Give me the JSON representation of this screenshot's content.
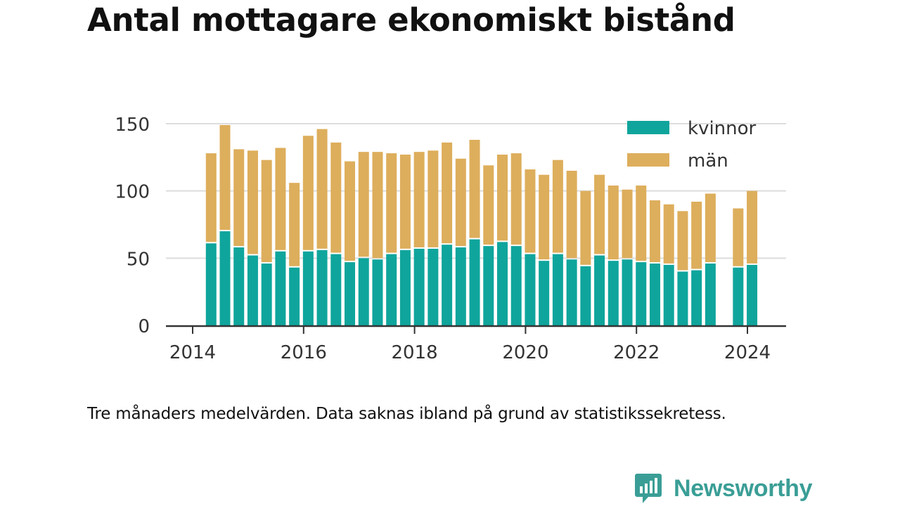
{
  "chart_data": {
    "type": "bar",
    "stacked": true,
    "title": "Antal mottagare ekonomiskt bistånd",
    "xlabel": "",
    "ylabel": "",
    "ylim": [
      0,
      155
    ],
    "yticks": [
      0,
      50,
      100,
      150
    ],
    "xticks": [
      "2014",
      "2016",
      "2018",
      "2020",
      "2022",
      "2024"
    ],
    "xlim": [
      2014,
      2024.5
    ],
    "grid": true,
    "legend_position": "top-right",
    "x": [
      2014.333,
      2014.583,
      2014.833,
      2015.083,
      2015.333,
      2015.583,
      2015.833,
      2016.083,
      2016.333,
      2016.583,
      2016.833,
      2017.083,
      2017.333,
      2017.583,
      2017.833,
      2018.083,
      2018.333,
      2018.583,
      2018.833,
      2019.083,
      2019.333,
      2019.583,
      2019.833,
      2020.083,
      2020.333,
      2020.583,
      2020.833,
      2021.083,
      2021.333,
      2021.583,
      2021.833,
      2022.083,
      2022.333,
      2022.583,
      2022.833,
      2023.083,
      2023.333,
      2023.583,
      2023.833,
      2024.083
    ],
    "series": [
      {
        "name": "kvinnor",
        "color": "#0fa59c",
        "values": [
          61,
          70,
          58,
          52,
          46,
          55,
          43,
          55,
          56,
          53,
          47,
          50,
          49,
          53,
          56,
          57,
          57,
          60,
          58,
          64,
          59,
          62,
          59,
          53,
          48,
          53,
          49,
          44,
          52,
          48,
          49,
          47,
          46,
          45,
          40,
          41,
          46,
          null,
          43,
          45
        ]
      },
      {
        "name": "män",
        "color": "#ddae5c",
        "values": [
          67,
          79,
          73,
          78,
          77,
          77,
          63,
          86,
          90,
          83,
          75,
          79,
          80,
          75,
          71,
          72,
          73,
          76,
          66,
          74,
          60,
          65,
          69,
          63,
          64,
          70,
          66,
          56,
          60,
          56,
          52,
          57,
          47,
          45,
          45,
          51,
          52,
          null,
          44,
          55
        ]
      }
    ]
  },
  "note": "Tre månaders medelvärden. Data saknas ibland på grund av statistikssekretess.",
  "brand": {
    "name": "Newsworthy",
    "icon": "newsworthy-logo-icon",
    "color": "#3a9e96"
  },
  "colors": {
    "grid": "#dddddd",
    "axis": "#333333",
    "text": "#333333"
  }
}
